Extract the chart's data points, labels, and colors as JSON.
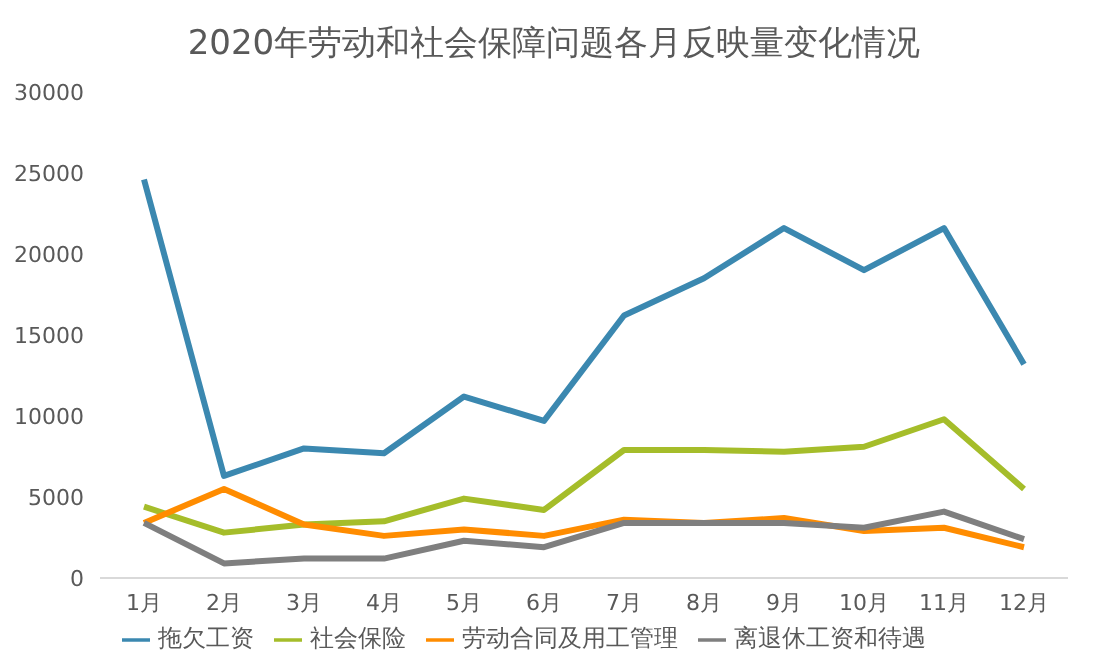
{
  "chart_data": {
    "type": "line",
    "title": "2020年劳动和社会保障问题各月反映量变化情况",
    "categories": [
      "1月",
      "2月",
      "3月",
      "4月",
      "5月",
      "6月",
      "7月",
      "8月",
      "9月",
      "10月",
      "11月",
      "12月"
    ],
    "series": [
      {
        "name": "拖欠工资",
        "color": "#3b88b0",
        "values": [
          24600,
          6300,
          8000,
          7700,
          11200,
          9700,
          16200,
          18500,
          21600,
          19000,
          21600,
          13200
        ]
      },
      {
        "name": "社会保险",
        "color": "#a5bd2a",
        "values": [
          4400,
          2800,
          3300,
          3500,
          4900,
          4200,
          7900,
          7900,
          7800,
          8100,
          9800,
          5500
        ]
      },
      {
        "name": "劳动合同及用工管理",
        "color": "#ff8c00",
        "values": [
          3400,
          5500,
          3300,
          2600,
          3000,
          2600,
          3600,
          3400,
          3700,
          2900,
          3100,
          1900
        ]
      },
      {
        "name": "离退休工资和待遇",
        "color": "#7f7f7f",
        "values": [
          3400,
          900,
          1200,
          1200,
          2300,
          1900,
          3400,
          3400,
          3400,
          3100,
          4100,
          2400
        ]
      }
    ],
    "ylim": [
      0,
      30000
    ],
    "yticks": [
      0,
      5000,
      10000,
      15000,
      20000,
      25000,
      30000
    ],
    "grid": false,
    "legend": "bottom",
    "marker": "none",
    "line_style": "solid"
  }
}
